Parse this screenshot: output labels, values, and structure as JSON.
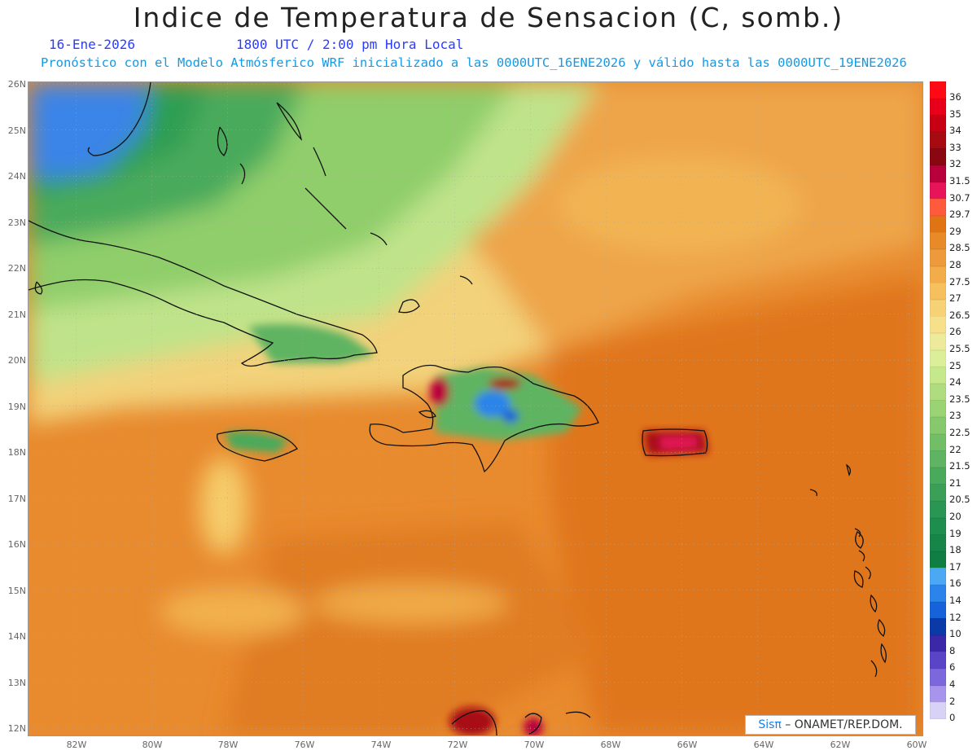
{
  "header": {
    "title": "Indice de Temperatura de Sensacion (C, somb.)",
    "date": "16-Ene-2026",
    "time": "1800 UTC / 2:00 pm Hora Local",
    "model_line": "Pronóstico con el Modelo Atmósferico WRF inicializado a las 0000UTC_16ENE2026 y válido hasta las  0000UTC_19ENE2026"
  },
  "map": {
    "lat_labels": [
      "26N",
      "25N",
      "24N",
      "23N",
      "22N",
      "21N",
      "20N",
      "19N",
      "18N",
      "17N",
      "16N",
      "15N",
      "14N",
      "13N",
      "12N"
    ],
    "lon_labels": [
      "82W",
      "80W",
      "78W",
      "76W",
      "74W",
      "72W",
      "70W",
      "68W",
      "66W",
      "64W",
      "62W",
      "60W"
    ],
    "colors": {
      "ocean_warm": "#e8892e",
      "ocean_hot": "#e0761a",
      "cool_green": "#8fce6a",
      "deep_green": "#2e9e52",
      "blue": "#3a84e8",
      "coastline": "#111111"
    }
  },
  "legend": {
    "items": [
      {
        "label": "36",
        "color": "#ff0a14"
      },
      {
        "label": "35",
        "color": "#e8001a"
      },
      {
        "label": "34",
        "color": "#c80014"
      },
      {
        "label": "33",
        "color": "#a80a12"
      },
      {
        "label": "32",
        "color": "#8a0610"
      },
      {
        "label": "31.5",
        "color": "#b8003c"
      },
      {
        "label": "30.7",
        "color": "#e8145a"
      },
      {
        "label": "29.7",
        "color": "#ff5a3c"
      },
      {
        "label": "29",
        "color": "#e07414"
      },
      {
        "label": "28.5",
        "color": "#e88a28"
      },
      {
        "label": "28",
        "color": "#ee9a3c"
      },
      {
        "label": "27.5",
        "color": "#f2ac4a"
      },
      {
        "label": "27",
        "color": "#f6c05e"
      },
      {
        "label": "26.5",
        "color": "#f7d274"
      },
      {
        "label": "26",
        "color": "#f6e08a"
      },
      {
        "label": "25.5",
        "color": "#eeea9c"
      },
      {
        "label": "25",
        "color": "#dcee9a"
      },
      {
        "label": "24",
        "color": "#c4e88a"
      },
      {
        "label": "23.5",
        "color": "#aedc7e"
      },
      {
        "label": "23",
        "color": "#9ad274"
      },
      {
        "label": "22.5",
        "color": "#86c86c"
      },
      {
        "label": "22",
        "color": "#72be66"
      },
      {
        "label": "21.5",
        "color": "#5eb462"
      },
      {
        "label": "21",
        "color": "#4aaa5c"
      },
      {
        "label": "20.5",
        "color": "#3aa058"
      },
      {
        "label": "20",
        "color": "#2a9654"
      },
      {
        "label": "19",
        "color": "#1e8e4e"
      },
      {
        "label": "18",
        "color": "#168648"
      },
      {
        "label": "17",
        "color": "#0e7e42"
      },
      {
        "label": "16",
        "color": "#4aa8f4"
      },
      {
        "label": "14",
        "color": "#2a84ea"
      },
      {
        "label": "12",
        "color": "#1662d8"
      },
      {
        "label": "10",
        "color": "#0a3aa8"
      },
      {
        "label": "8",
        "color": "#3a28a8"
      },
      {
        "label": "6",
        "color": "#5a44c8"
      },
      {
        "label": "4",
        "color": "#7c68dc"
      },
      {
        "label": "2",
        "color": "#a894ec"
      },
      {
        "label": "0",
        "color": "#d8d2f6"
      }
    ]
  },
  "credit": {
    "brand": "Sisπ",
    "org": " – ONAMET/REP.DOM."
  }
}
